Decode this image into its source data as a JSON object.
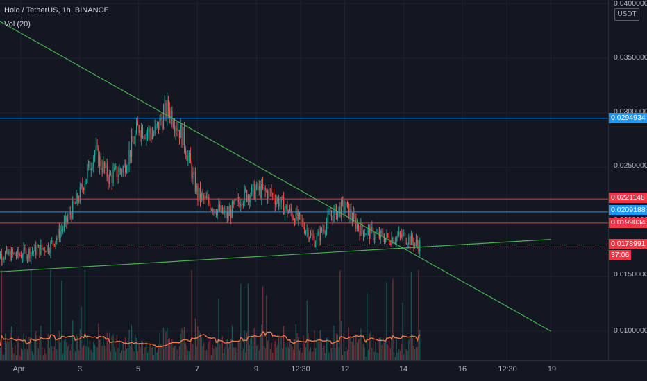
{
  "header": {
    "symbol_line": "Holo / TetherUS, 1h, BINANCE",
    "indicator": "Vol (20)"
  },
  "price_axis": {
    "currency_badge": "USDT",
    "tick_labels": [
      "0.0400000",
      "0.0350000",
      "0.0300000",
      "0.0250000",
      "0.0200000",
      "0.0150000",
      "0.0100000"
    ]
  },
  "time_axis": {
    "tick_labels": [
      "Apr",
      "3",
      "5",
      "7",
      "9",
      "12:30",
      "12",
      "14",
      "16",
      "12:30",
      "19"
    ]
  },
  "price_tags": [
    {
      "label": "0.0294934",
      "kind": "level",
      "color": "#2196f3"
    },
    {
      "label": "0.0221148",
      "kind": "level",
      "color": "#f23645"
    },
    {
      "label": "0.0209188",
      "kind": "level",
      "color": "#2196f3"
    },
    {
      "label": "0.0199034",
      "kind": "level",
      "color": "#f23645"
    },
    {
      "label": "0.0178991",
      "kind": "last",
      "color": "#f23645"
    }
  ],
  "countdown": "37:06",
  "colors": {
    "background": "#131722",
    "grid": "#1e222d",
    "up": "#26a69a",
    "down": "#ef5350",
    "trendline": "#4caf50",
    "volume_ma": "#ff7a45"
  },
  "chart_data": {
    "type": "candlestick",
    "symbol": "Holo / TetherUS",
    "interval": "1h",
    "exchange": "BINANCE",
    "ylim": [
      0.0085,
      0.0405
    ],
    "horizontal_levels": [
      {
        "price": 0.0294934,
        "color": "#2196f3"
      },
      {
        "price": 0.0221148,
        "color": "#f23645"
      },
      {
        "price": 0.0209188,
        "color": "#2196f3"
      },
      {
        "price": 0.0199034,
        "color": "#f23645"
      },
      {
        "price": 0.0178991,
        "color": "#f23645",
        "style": "dotted"
      }
    ],
    "trendlines": [
      {
        "from": {
          "x": "Mar 31",
          "y": 0.0388
        },
        "to": {
          "x": "Apr 19",
          "y": 0.01
        },
        "name": ""
      },
      {
        "from": {
          "x": "Mar 31",
          "y": 0.0154
        },
        "to": {
          "x": "Apr 19",
          "y": 0.0184
        },
        "name": ""
      }
    ],
    "price_path": [
      {
        "t": "Apr 1",
        "price": 0.017
      },
      {
        "t": "Apr 2",
        "price": 0.0178
      },
      {
        "t": "Apr 2.5",
        "price": 0.0198
      },
      {
        "t": "Apr 3",
        "price": 0.0225
      },
      {
        "t": "Apr 3.5",
        "price": 0.0265
      },
      {
        "t": "Apr 4",
        "price": 0.024
      },
      {
        "t": "Apr 4.5",
        "price": 0.025
      },
      {
        "t": "Apr 5",
        "price": 0.0287
      },
      {
        "t": "Apr 5.5",
        "price": 0.028
      },
      {
        "t": "Apr 6",
        "price": 0.0305
      },
      {
        "t": "Apr 6.5",
        "price": 0.0278
      },
      {
        "t": "Apr 7",
        "price": 0.0225
      },
      {
        "t": "Apr 7.5",
        "price": 0.0215
      },
      {
        "t": "Apr 8",
        "price": 0.0205
      },
      {
        "t": "Apr 8.5",
        "price": 0.0223
      },
      {
        "t": "Apr 9",
        "price": 0.0229
      },
      {
        "t": "Apr 9.5",
        "price": 0.0226
      },
      {
        "t": "Apr 10",
        "price": 0.0212
      },
      {
        "t": "Apr 10.5",
        "price": 0.02
      },
      {
        "t": "Apr 11",
        "price": 0.0182
      },
      {
        "t": "Apr 11.5",
        "price": 0.0205
      },
      {
        "t": "Apr 12",
        "price": 0.0215
      },
      {
        "t": "Apr 12.5",
        "price": 0.0194
      },
      {
        "t": "Apr 13",
        "price": 0.0188
      },
      {
        "t": "Apr 13.5",
        "price": 0.0185
      },
      {
        "t": "Apr 14",
        "price": 0.0187
      },
      {
        "t": "Apr 14.5",
        "price": 0.0179
      }
    ],
    "volume_ma_period": 20
  }
}
